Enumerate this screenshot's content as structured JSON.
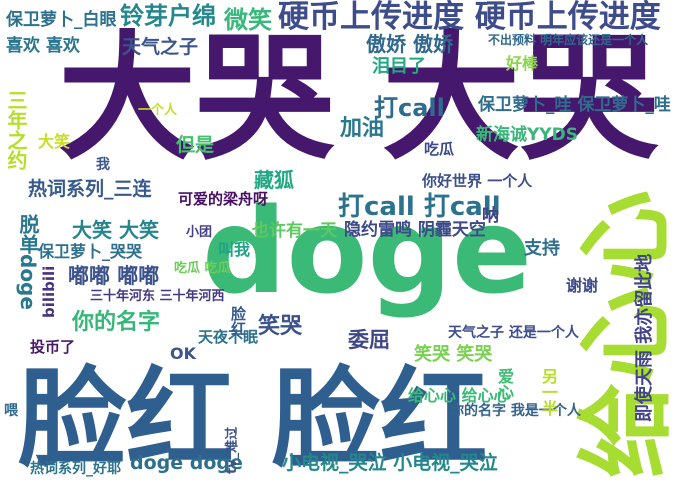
{
  "words": [
    {
      "text": "大哭 大哭",
      "color": "#46186d"
    },
    {
      "text": "doge",
      "color": "#3aba76"
    },
    {
      "text": "脸红 脸红",
      "color": "#2f5f8f"
    },
    {
      "text": "给心心",
      "color": "#a7dc33"
    },
    {
      "text": "硬币上传进度 硬币上传进度",
      "color": "#3d4c8a"
    },
    {
      "text": "铃芽户绵",
      "color": "#24878e"
    },
    {
      "text": "微笑",
      "color": "#38b87a"
    },
    {
      "text": "保卫萝卜_白眼",
      "color": "#2d718e"
    },
    {
      "text": "天气之子",
      "color": "#3a558c"
    },
    {
      "text": "喜欢 喜欢",
      "color": "#2b758e"
    },
    {
      "text": "傲娇 傲娇",
      "color": "#31688e"
    },
    {
      "text": "泪目了",
      "color": "#24a884"
    },
    {
      "text": "好棒",
      "color": "#8cd646"
    },
    {
      "text": "打call",
      "color": "#2e6b8e"
    },
    {
      "text": "保卫萝卜_哇 保卫萝卜_哇",
      "color": "#2f6c8e"
    },
    {
      "text": "加油",
      "color": "#2a788e"
    },
    {
      "text": "新海诚YYDS",
      "color": "#39b77a"
    },
    {
      "text": "吃瓜",
      "color": "#3e4a89"
    },
    {
      "text": "三年之约",
      "color": "#b5de2b"
    },
    {
      "text": "大笑",
      "color": "#c8e020"
    },
    {
      "text": "但是",
      "color": "#46c06f"
    },
    {
      "text": "热词系列_三连",
      "color": "#375a8c"
    },
    {
      "text": "藏狐",
      "color": "#22a884"
    },
    {
      "text": "你好世界 一个人",
      "color": "#3c4f8a"
    },
    {
      "text": "可爱的梁舟呀",
      "color": "#471063"
    },
    {
      "text": "打call 打call",
      "color": "#2c728e"
    },
    {
      "text": "呐",
      "color": "#414487"
    },
    {
      "text": "脱单doge",
      "color": "#2a788e"
    },
    {
      "text": "大笑 大笑",
      "color": "#25848e"
    },
    {
      "text": "也许有一天",
      "color": "#5ec962"
    },
    {
      "text": "隐约雷鸣 阴霾天空",
      "color": "#3e4989"
    },
    {
      "text": "支持",
      "color": "#2e6e8e"
    },
    {
      "text": "保卫萝卜_哭哭",
      "color": "#2d708e"
    },
    {
      "text": "叫我",
      "color": "#20a386"
    },
    {
      "text": "吃瓜 吃瓜",
      "color": "#6ccd5a"
    },
    {
      "text": "嘟嘟 嘟嘟",
      "color": "#3b528b"
    },
    {
      "text": "谢谢",
      "color": "#3e4a89"
    },
    {
      "text": "即使天雨 我亦留此地",
      "color": "#414487"
    },
    {
      "text": "bilibili",
      "color": "#46327e"
    },
    {
      "text": "三十年河东 三十年河西",
      "color": "#443983"
    },
    {
      "text": "你的名字",
      "color": "#35b779"
    },
    {
      "text": "笑哭",
      "color": "#3b528b"
    },
    {
      "text": "天夜不眠",
      "color": "#2c728e"
    },
    {
      "text": "委屈",
      "color": "#3f4788"
    },
    {
      "text": "投币了",
      "color": "#48186a"
    },
    {
      "text": "OK",
      "color": "#3a548c"
    },
    {
      "text": "脸红",
      "color": "#365c8d"
    },
    {
      "text": "笑哭 笑哭",
      "color": "#7ad151"
    },
    {
      "text": "天气之子 还是一个人",
      "color": "#3d4e8a"
    },
    {
      "text": "给心心 给心心",
      "color": "#38b977"
    },
    {
      "text": "你的名字 我是一个人",
      "color": "#33638d"
    },
    {
      "text": "热词系列_好耶",
      "color": "#2c738e"
    },
    {
      "text": "doge doge",
      "color": "#2d708e"
    },
    {
      "text": "小电视_哭泣 小电视_哭泣",
      "color": "#23888e"
    },
    {
      "text": "爱心",
      "color": "#3fbc73"
    },
    {
      "text": "另一半",
      "color": "#b8de29"
    },
    {
      "text": "不出预料 明年应该还是一个人",
      "color": "#31688e"
    },
    {
      "text": "一个人",
      "color": "#c0df25"
    },
    {
      "text": "我",
      "color": "#39568c"
    },
    {
      "text": "喂",
      "color": "#2f6b8e"
    },
    {
      "text": "tv_难过",
      "color": "#3b528b"
    },
    {
      "text": "小团",
      "color": "#433e85"
    }
  ]
}
